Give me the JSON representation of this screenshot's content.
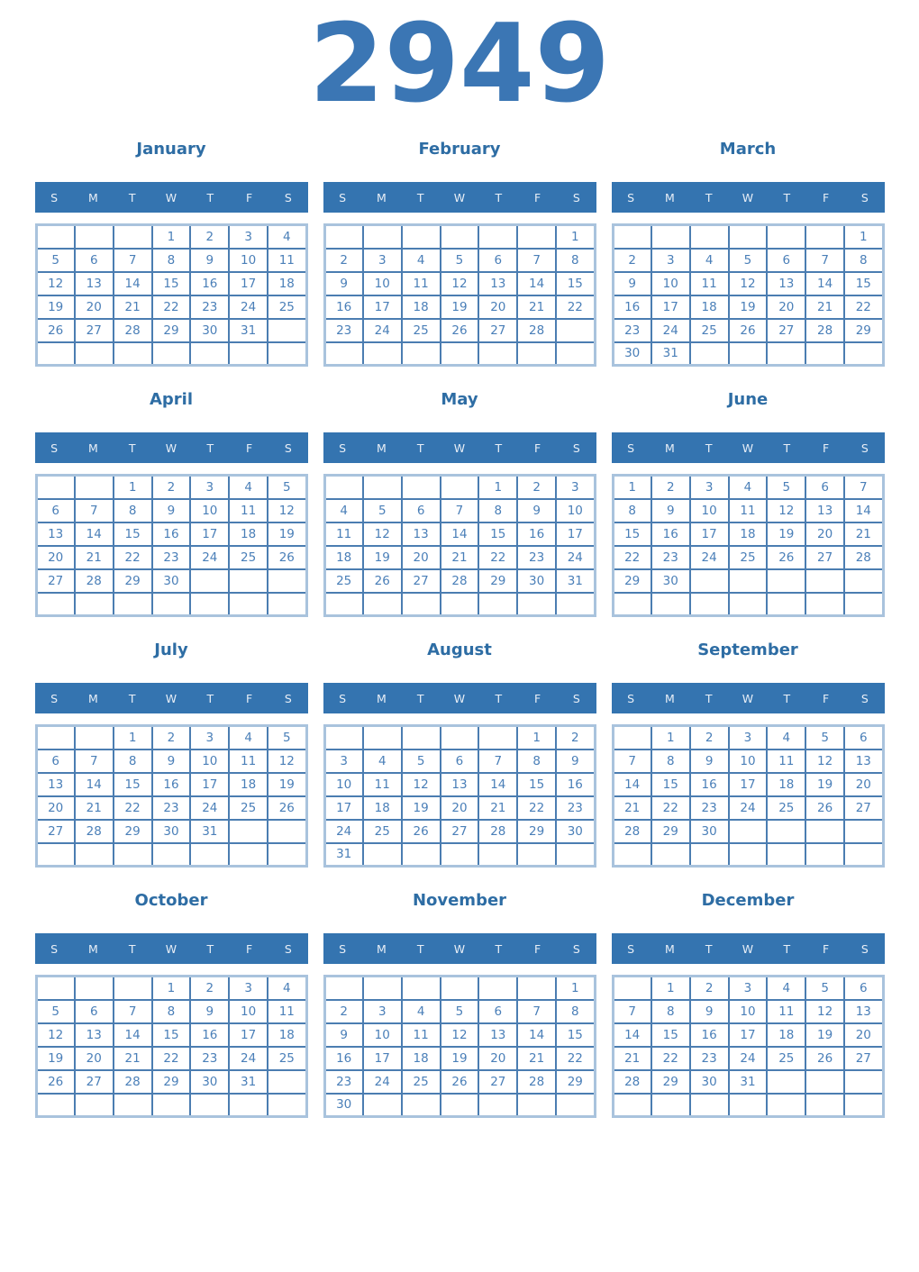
{
  "year": "2949",
  "weekday_headers": [
    "S",
    "M",
    "T",
    "W",
    "T",
    "F",
    "S"
  ],
  "colors": {
    "accent_blue": "#3b76b4",
    "title_blue": "#2e6da4",
    "header_background": "#3474b0",
    "header_text": "#e8eef6",
    "day_number": "#4a7fb8",
    "inner_border": "#4b7db1",
    "outer_border": "#a9c3dd",
    "page_background": "#ffffff"
  },
  "months": [
    {
      "name": "January",
      "weeks": [
        [
          "",
          "",
          "",
          "1",
          "2",
          "3",
          "4"
        ],
        [
          "5",
          "6",
          "7",
          "8",
          "9",
          "10",
          "11"
        ],
        [
          "12",
          "13",
          "14",
          "15",
          "16",
          "17",
          "18"
        ],
        [
          "19",
          "20",
          "21",
          "22",
          "23",
          "24",
          "25"
        ],
        [
          "26",
          "27",
          "28",
          "29",
          "30",
          "31",
          ""
        ],
        [
          "",
          "",
          "",
          "",
          "",
          "",
          ""
        ]
      ]
    },
    {
      "name": "February",
      "weeks": [
        [
          "",
          "",
          "",
          "",
          "",
          "",
          "1"
        ],
        [
          "2",
          "3",
          "4",
          "5",
          "6",
          "7",
          "8"
        ],
        [
          "9",
          "10",
          "11",
          "12",
          "13",
          "14",
          "15"
        ],
        [
          "16",
          "17",
          "18",
          "19",
          "20",
          "21",
          "22"
        ],
        [
          "23",
          "24",
          "25",
          "26",
          "27",
          "28",
          ""
        ],
        [
          "",
          "",
          "",
          "",
          "",
          "",
          ""
        ]
      ]
    },
    {
      "name": "March",
      "weeks": [
        [
          "",
          "",
          "",
          "",
          "",
          "",
          "1"
        ],
        [
          "2",
          "3",
          "4",
          "5",
          "6",
          "7",
          "8"
        ],
        [
          "9",
          "10",
          "11",
          "12",
          "13",
          "14",
          "15"
        ],
        [
          "16",
          "17",
          "18",
          "19",
          "20",
          "21",
          "22"
        ],
        [
          "23",
          "24",
          "25",
          "26",
          "27",
          "28",
          "29"
        ],
        [
          "30",
          "31",
          "",
          "",
          "",
          "",
          ""
        ]
      ]
    },
    {
      "name": "April",
      "weeks": [
        [
          "",
          "",
          "1",
          "2",
          "3",
          "4",
          "5"
        ],
        [
          "6",
          "7",
          "8",
          "9",
          "10",
          "11",
          "12"
        ],
        [
          "13",
          "14",
          "15",
          "16",
          "17",
          "18",
          "19"
        ],
        [
          "20",
          "21",
          "22",
          "23",
          "24",
          "25",
          "26"
        ],
        [
          "27",
          "28",
          "29",
          "30",
          "",
          "",
          ""
        ],
        [
          "",
          "",
          "",
          "",
          "",
          "",
          ""
        ]
      ]
    },
    {
      "name": "May",
      "weeks": [
        [
          "",
          "",
          "",
          "",
          "1",
          "2",
          "3"
        ],
        [
          "4",
          "5",
          "6",
          "7",
          "8",
          "9",
          "10"
        ],
        [
          "11",
          "12",
          "13",
          "14",
          "15",
          "16",
          "17"
        ],
        [
          "18",
          "19",
          "20",
          "21",
          "22",
          "23",
          "24"
        ],
        [
          "25",
          "26",
          "27",
          "28",
          "29",
          "30",
          "31"
        ],
        [
          "",
          "",
          "",
          "",
          "",
          "",
          ""
        ]
      ]
    },
    {
      "name": "June",
      "weeks": [
        [
          "1",
          "2",
          "3",
          "4",
          "5",
          "6",
          "7"
        ],
        [
          "8",
          "9",
          "10",
          "11",
          "12",
          "13",
          "14"
        ],
        [
          "15",
          "16",
          "17",
          "18",
          "19",
          "20",
          "21"
        ],
        [
          "22",
          "23",
          "24",
          "25",
          "26",
          "27",
          "28"
        ],
        [
          "29",
          "30",
          "",
          "",
          "",
          "",
          ""
        ],
        [
          "",
          "",
          "",
          "",
          "",
          "",
          ""
        ]
      ]
    },
    {
      "name": "July",
      "weeks": [
        [
          "",
          "",
          "1",
          "2",
          "3",
          "4",
          "5"
        ],
        [
          "6",
          "7",
          "8",
          "9",
          "10",
          "11",
          "12"
        ],
        [
          "13",
          "14",
          "15",
          "16",
          "17",
          "18",
          "19"
        ],
        [
          "20",
          "21",
          "22",
          "23",
          "24",
          "25",
          "26"
        ],
        [
          "27",
          "28",
          "29",
          "30",
          "31",
          "",
          ""
        ],
        [
          "",
          "",
          "",
          "",
          "",
          "",
          ""
        ]
      ]
    },
    {
      "name": "August",
      "weeks": [
        [
          "",
          "",
          "",
          "",
          "",
          "1",
          "2"
        ],
        [
          "3",
          "4",
          "5",
          "6",
          "7",
          "8",
          "9"
        ],
        [
          "10",
          "11",
          "12",
          "13",
          "14",
          "15",
          "16"
        ],
        [
          "17",
          "18",
          "19",
          "20",
          "21",
          "22",
          "23"
        ],
        [
          "24",
          "25",
          "26",
          "27",
          "28",
          "29",
          "30"
        ],
        [
          "31",
          "",
          "",
          "",
          "",
          "",
          ""
        ]
      ]
    },
    {
      "name": "September",
      "weeks": [
        [
          "",
          "1",
          "2",
          "3",
          "4",
          "5",
          "6"
        ],
        [
          "7",
          "8",
          "9",
          "10",
          "11",
          "12",
          "13"
        ],
        [
          "14",
          "15",
          "16",
          "17",
          "18",
          "19",
          "20"
        ],
        [
          "21",
          "22",
          "23",
          "24",
          "25",
          "26",
          "27"
        ],
        [
          "28",
          "29",
          "30",
          "",
          "",
          "",
          ""
        ],
        [
          "",
          "",
          "",
          "",
          "",
          "",
          ""
        ]
      ]
    },
    {
      "name": "October",
      "weeks": [
        [
          "",
          "",
          "",
          "1",
          "2",
          "3",
          "4"
        ],
        [
          "5",
          "6",
          "7",
          "8",
          "9",
          "10",
          "11"
        ],
        [
          "12",
          "13",
          "14",
          "15",
          "16",
          "17",
          "18"
        ],
        [
          "19",
          "20",
          "21",
          "22",
          "23",
          "24",
          "25"
        ],
        [
          "26",
          "27",
          "28",
          "29",
          "30",
          "31",
          ""
        ],
        [
          "",
          "",
          "",
          "",
          "",
          "",
          ""
        ]
      ]
    },
    {
      "name": "November",
      "weeks": [
        [
          "",
          "",
          "",
          "",
          "",
          "",
          "1"
        ],
        [
          "2",
          "3",
          "4",
          "5",
          "6",
          "7",
          "8"
        ],
        [
          "9",
          "10",
          "11",
          "12",
          "13",
          "14",
          "15"
        ],
        [
          "16",
          "17",
          "18",
          "19",
          "20",
          "21",
          "22"
        ],
        [
          "23",
          "24",
          "25",
          "26",
          "27",
          "28",
          "29"
        ],
        [
          "30",
          "",
          "",
          "",
          "",
          "",
          ""
        ]
      ]
    },
    {
      "name": "December",
      "weeks": [
        [
          "",
          "1",
          "2",
          "3",
          "4",
          "5",
          "6"
        ],
        [
          "7",
          "8",
          "9",
          "10",
          "11",
          "12",
          "13"
        ],
        [
          "14",
          "15",
          "16",
          "17",
          "18",
          "19",
          "20"
        ],
        [
          "21",
          "22",
          "23",
          "24",
          "25",
          "26",
          "27"
        ],
        [
          "28",
          "29",
          "30",
          "31",
          "",
          "",
          ""
        ],
        [
          "",
          "",
          "",
          "",
          "",
          "",
          ""
        ]
      ]
    }
  ]
}
